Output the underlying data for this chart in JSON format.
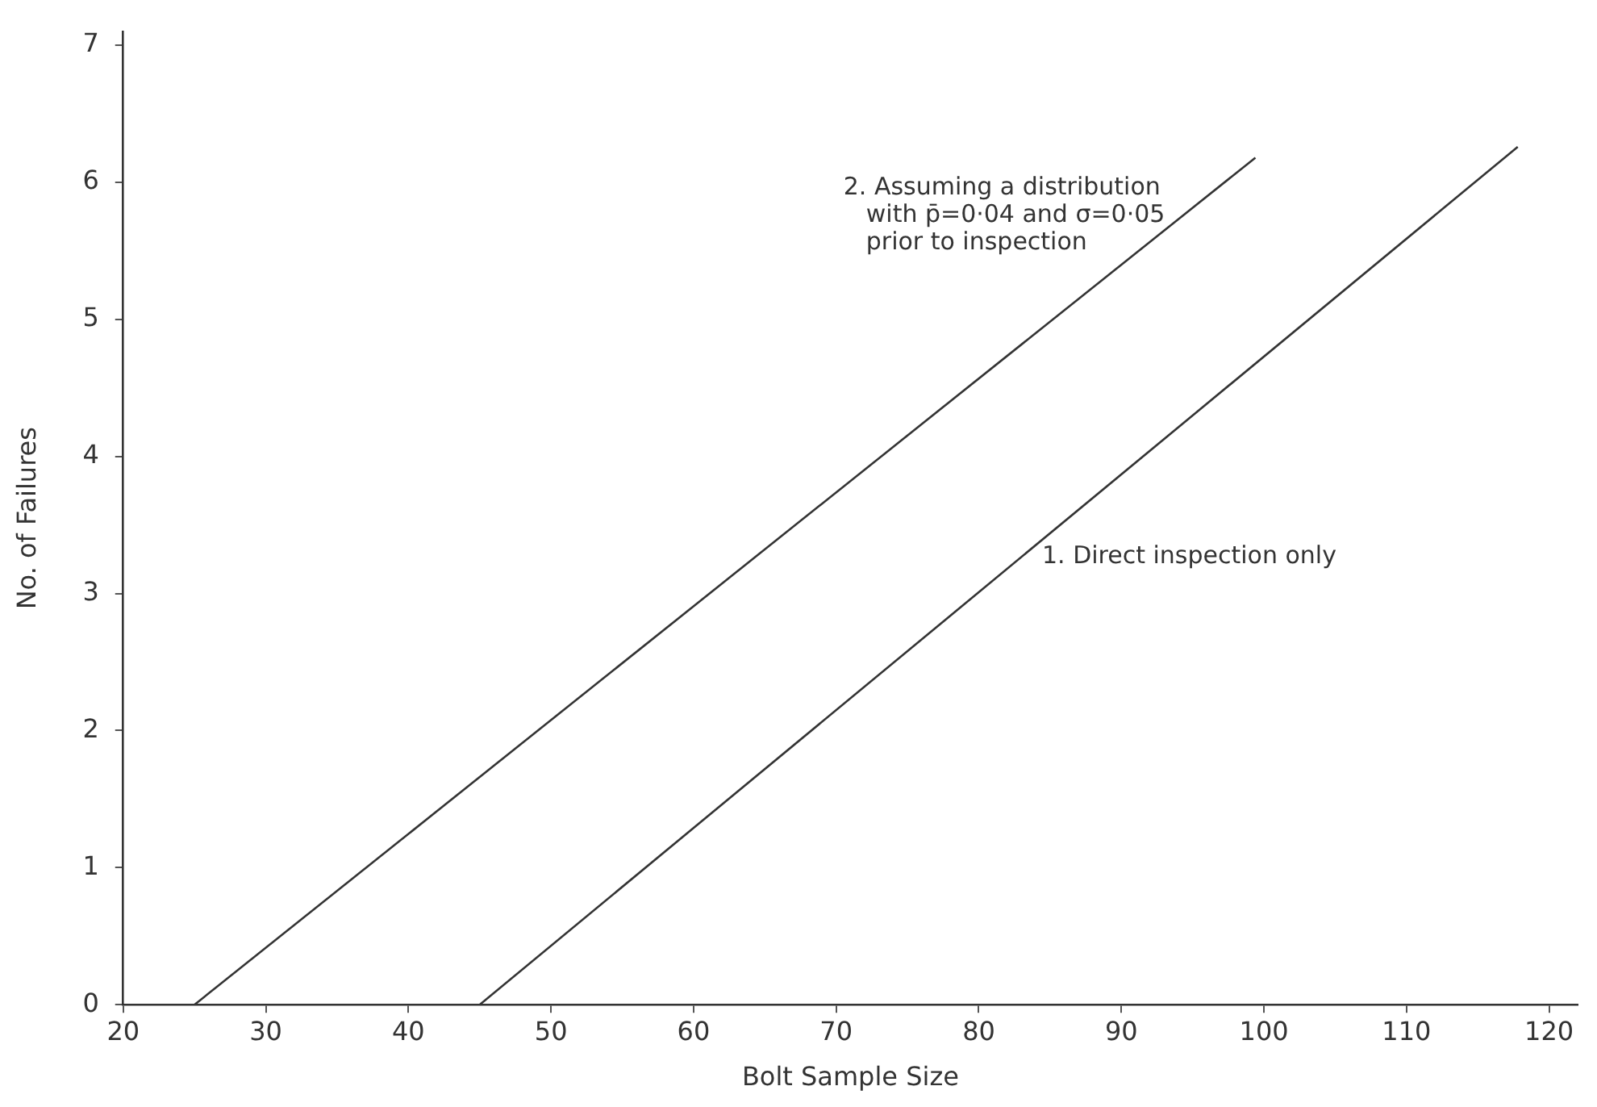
{
  "chart_data": {
    "type": "line",
    "xlabel": "Bolt Sample Size",
    "ylabel": "No. of Failures",
    "xlim": [
      20,
      122
    ],
    "xticks": [
      20,
      30,
      40,
      50,
      60,
      70,
      80,
      90,
      100,
      110,
      120
    ],
    "ylim": [
      0,
      7.1
    ],
    "yticks": [
      0,
      1,
      2,
      3,
      4,
      5,
      6,
      7
    ],
    "series": [
      {
        "name": "1. Direct inspection only",
        "color": "#333333",
        "x": [
          45,
          117.8
        ],
        "values": [
          0,
          6.26
        ]
      },
      {
        "name": "2. Assuming a distribution\nwith p̄=0·04 and σ=0·05\nprior to inspection",
        "color": "#333333",
        "x": [
          25,
          99.4
        ],
        "values": [
          0,
          6.18
        ]
      }
    ],
    "grid": false,
    "legend": false,
    "marker": "none",
    "line_style": "solid"
  }
}
